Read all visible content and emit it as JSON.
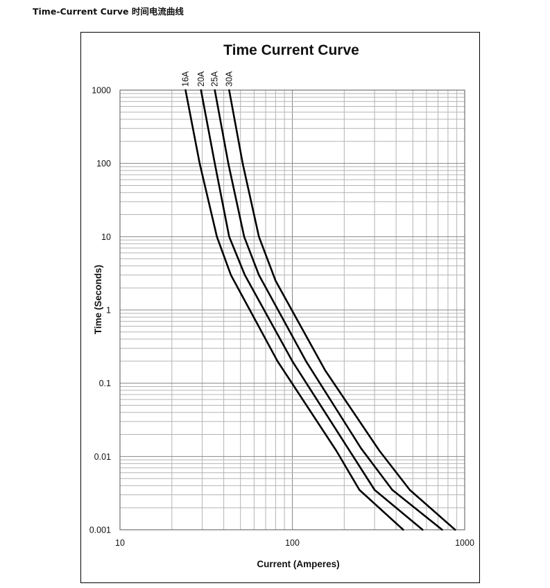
{
  "page": {
    "heading": "Time-Current Curve 时间电流曲线"
  },
  "chart_data": {
    "type": "line",
    "title": "Time Current Curve",
    "xlabel": "Current  (Amperes)",
    "ylabel": "Time (Seconds)",
    "x_scale": "log",
    "y_scale": "log",
    "xlim": [
      10,
      1000
    ],
    "ylim": [
      0.001,
      1000
    ],
    "x_ticks": [
      "10",
      "100",
      "1000"
    ],
    "y_ticks": [
      "0.001",
      "0.01",
      "0.1",
      "1",
      "10",
      "100",
      "1000"
    ],
    "grid": true,
    "line_color": "#000000",
    "grid_color": "#b4b4b4",
    "series": [
      {
        "name": "16A",
        "points": [
          [
            24,
            1000
          ],
          [
            29,
            100
          ],
          [
            36.5,
            10
          ],
          [
            44,
            3
          ],
          [
            82,
            0.2
          ],
          [
            180,
            0.012
          ],
          [
            245,
            0.0035
          ],
          [
            440,
            0.001
          ]
        ]
      },
      {
        "name": "20A",
        "points": [
          [
            29.5,
            1000
          ],
          [
            35.5,
            100
          ],
          [
            43,
            10
          ],
          [
            53,
            3
          ],
          [
            100,
            0.2
          ],
          [
            210,
            0.013
          ],
          [
            300,
            0.0035
          ],
          [
            570,
            0.001
          ]
        ]
      },
      {
        "name": "25A",
        "points": [
          [
            35.5,
            1000
          ],
          [
            42.5,
            100
          ],
          [
            52.5,
            10
          ],
          [
            64,
            3
          ],
          [
            120,
            0.2
          ],
          [
            250,
            0.013
          ],
          [
            380,
            0.0035
          ],
          [
            740,
            0.001
          ]
        ]
      },
      {
        "name": "30A",
        "points": [
          [
            43,
            1000
          ],
          [
            51.5,
            100
          ],
          [
            64,
            10
          ],
          [
            80,
            2.5
          ],
          [
            155,
            0.15
          ],
          [
            320,
            0.012
          ],
          [
            480,
            0.0035
          ],
          [
            880,
            0.001
          ]
        ]
      }
    ]
  }
}
